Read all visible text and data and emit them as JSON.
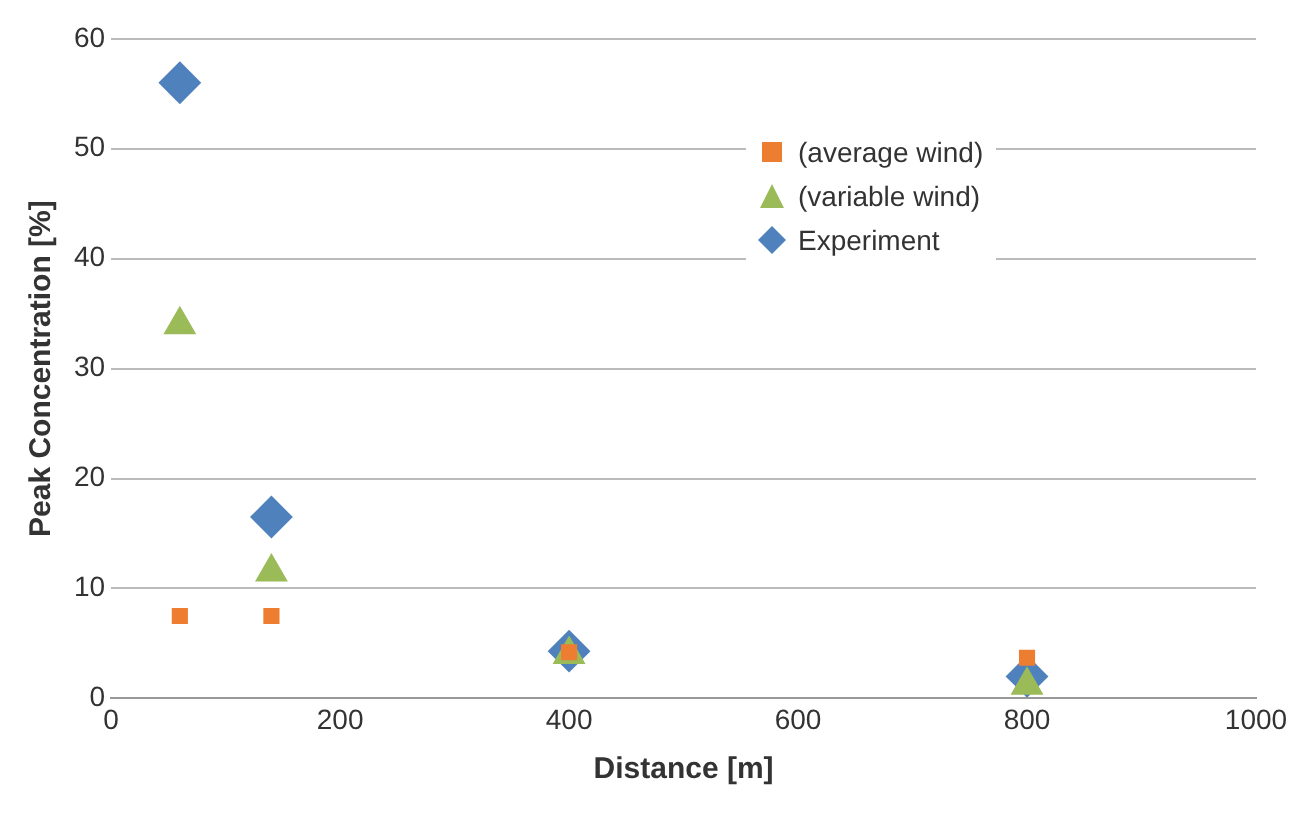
{
  "chart_data": {
    "type": "scatter",
    "xlabel": "Distance [m]",
    "ylabel": "Peak Concentration [%]",
    "xlim": [
      0,
      1000
    ],
    "xticks": [
      0,
      200,
      400,
      600,
      800,
      1000
    ],
    "ylim": [
      0,
      60
    ],
    "yticks": [
      0,
      10,
      20,
      30,
      40,
      50,
      60
    ],
    "grid": "y",
    "legend": "top right",
    "series": [
      {
        "name": "(average wind)",
        "color": "#ed7d31",
        "marker": "square",
        "x": [
          60,
          140,
          400,
          800
        ],
        "values": [
          7.5,
          7.5,
          4.2,
          3.7
        ]
      },
      {
        "name": "(variable wind)",
        "color": "#9bbb59",
        "marker": "triangle",
        "x": [
          60,
          140,
          400,
          800
        ],
        "values": [
          34,
          11.5,
          4,
          1.2
        ]
      },
      {
        "name": "Experiment",
        "color": "#4f81bd",
        "marker": "diamond",
        "x": [
          60,
          140,
          400,
          800
        ],
        "values": [
          56,
          16.5,
          4.3,
          2
        ]
      }
    ]
  }
}
